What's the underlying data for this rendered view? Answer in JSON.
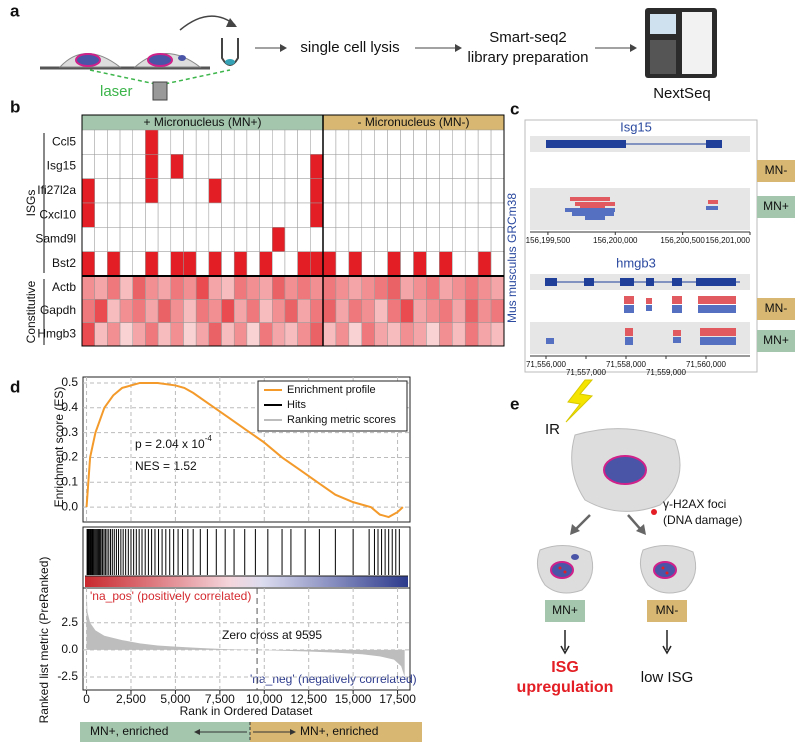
{
  "panel_a": {
    "label": "a",
    "laser": "laser",
    "step1": "single cell lysis",
    "step2": [
      "Smart-seq2",
      "library preparation"
    ],
    "sequencer": "NextSeq"
  },
  "panel_b": {
    "label": "b",
    "isg_label": "ISGs",
    "constitutive_label": "Constitutive",
    "genes": [
      "Ccl5",
      "Isg15",
      "Ifi27l2a",
      "Cxcl10",
      "Samd9l",
      "Bst2",
      "Actb",
      "Gapdh",
      "Hmgb3"
    ],
    "color": "#e31e24",
    "groups": [
      {
        "name": "+ Micronucleus (MN+)",
        "color": "#a3c6ad",
        "values": [
          [
            0,
            0,
            0,
            0,
            0,
            1,
            0,
            0,
            0,
            0,
            0,
            0,
            0,
            0,
            0,
            0,
            0,
            0,
            0
          ],
          [
            0,
            0,
            0,
            0,
            0,
            1,
            0,
            1,
            0,
            0,
            0,
            0,
            0,
            0,
            0,
            0,
            0,
            0,
            1
          ],
          [
            1,
            0,
            0,
            0,
            0,
            1,
            0,
            0,
            0,
            0,
            1,
            0,
            0,
            0,
            0,
            0,
            0,
            0,
            1
          ],
          [
            1,
            0,
            0,
            0,
            0,
            0,
            0,
            0,
            0,
            0,
            0,
            0,
            0,
            0,
            0,
            0,
            0,
            0,
            1
          ],
          [
            0,
            0,
            0,
            0,
            0,
            0,
            0,
            0,
            0,
            0,
            0,
            0,
            0,
            0,
            0,
            1,
            0,
            0,
            0
          ],
          [
            1,
            0,
            1,
            0,
            0,
            1,
            0,
            1,
            1,
            0,
            1,
            0,
            1,
            0,
            1,
            0,
            0,
            1,
            1
          ],
          [
            0.5,
            0.4,
            0.6,
            0.3,
            0.7,
            0.5,
            0.4,
            0.6,
            0.5,
            0.8,
            0.4,
            0.3,
            0.6,
            0.5,
            0.4,
            0.7,
            0.5,
            0.6,
            0.5
          ],
          [
            0.6,
            0.8,
            0.3,
            0.5,
            0.6,
            0.4,
            0.7,
            0.5,
            0.3,
            0.6,
            0.5,
            0.8,
            0.4,
            0.6,
            0.3,
            0.5,
            0.7,
            0.4,
            0.6
          ],
          [
            0.8,
            0.3,
            0.5,
            0.2,
            0.4,
            0.6,
            0.3,
            0.5,
            0.2,
            0.4,
            0.7,
            0.3,
            0.5,
            0.2,
            0.6,
            0.4,
            0.3,
            0.5,
            0.7
          ]
        ]
      },
      {
        "name": "- Micronucleus (MN-)",
        "color": "#d7b772",
        "values": [
          [
            0,
            0,
            0,
            0,
            0,
            0,
            0,
            0,
            0,
            0,
            0,
            0,
            0,
            0
          ],
          [
            0,
            0,
            0,
            0,
            0,
            0,
            0,
            0,
            0,
            0,
            0,
            0,
            0,
            0
          ],
          [
            0,
            0,
            0,
            0,
            0,
            0,
            0,
            0,
            0,
            0,
            0,
            0,
            0,
            0
          ],
          [
            0,
            0,
            0,
            0,
            0,
            0,
            0,
            0,
            0,
            0,
            0,
            0,
            0,
            0
          ],
          [
            0,
            0,
            0,
            0,
            0,
            0,
            0,
            0,
            0,
            0,
            0,
            0,
            0,
            0
          ],
          [
            1,
            0,
            1,
            0,
            0,
            1,
            0,
            1,
            0,
            1,
            0,
            0,
            1,
            0
          ],
          [
            0.6,
            0.5,
            0.4,
            0.5,
            0.6,
            0.7,
            0.4,
            0.5,
            0.6,
            0.4,
            0.5,
            0.6,
            0.5,
            0.4
          ],
          [
            0.7,
            0.4,
            0.6,
            0.5,
            0.3,
            0.6,
            0.8,
            0.4,
            0.5,
            0.6,
            0.4,
            0.7,
            0.5,
            0.6
          ],
          [
            0.3,
            0.5,
            0.2,
            0.6,
            0.4,
            0.3,
            0.5,
            0.4,
            0.2,
            0.5,
            0.3,
            0.6,
            0.4,
            0.3
          ]
        ]
      }
    ]
  },
  "panel_c": {
    "label": "c",
    "genome": "Mus musculus GRCm38",
    "conditions": [
      {
        "name": "MN-",
        "color": "#d7b772"
      },
      {
        "name": "MN+",
        "color": "#a3c6ad"
      }
    ],
    "tracks": [
      {
        "gene": "Isg15",
        "xlim": [
          156199367,
          156201000
        ],
        "ticks": [
          {
            "value": 156199500,
            "label": "156,199,500"
          },
          {
            "value": 156200000,
            "label": "156,200,000"
          },
          {
            "value": 156200500,
            "label": "156,200,500"
          },
          {
            "value": 156201000,
            "label": "156,201,000"
          }
        ]
      },
      {
        "gene": "hmgb3",
        "xlim": [
          71555600,
          71561100
        ],
        "ticks": [
          {
            "value": 71556000,
            "label": "71,556,000"
          },
          {
            "value": 71557000,
            "label": "71,557,000"
          },
          {
            "value": 71558000,
            "label": "71,558,000"
          },
          {
            "value": 71559000,
            "label": "71,559,000"
          },
          {
            "value": 71560000,
            "label": "71,560,000"
          }
        ]
      }
    ]
  },
  "chart_data": {
    "type": "gsea",
    "label": "d",
    "y_label": "Enrichment score (ES)",
    "y2_label": "Ranked list metric (PreRanked)",
    "x_label": "Rank in Ordered Dataset",
    "xlim": [
      -200,
      18200
    ],
    "xticks": [
      0,
      {
        "value": 2500,
        "label": "2,500"
      },
      {
        "value": 5000,
        "label": "5,000"
      },
      {
        "value": 7500,
        "label": "7,500"
      },
      {
        "value": 10000,
        "label": "10,000"
      },
      {
        "value": 12500,
        "label": "12,500"
      },
      {
        "value": 15000,
        "label": "15,000"
      },
      {
        "value": 17500,
        "label": "17,500"
      }
    ],
    "ylim": [
      -0.06,
      0.524
    ],
    "yticks": [
      {
        "value": 0,
        "label": "0.0"
      },
      0.1,
      0.2,
      0.3,
      0.4,
      0.5
    ],
    "y2lim": [
      -3.7,
      5.7
    ],
    "y2ticks": [
      -2.5,
      {
        "value": 0,
        "label": "0.0"
      },
      2.5
    ],
    "grid": true,
    "series": [
      {
        "name": "Enrichment profile",
        "color": "#f39a2b",
        "x": [
          0,
          200,
          500,
          1000,
          1500,
          2000,
          3000,
          4000,
          5000,
          5500,
          6000,
          7000,
          8000,
          9000,
          10000,
          11000,
          12000,
          13000,
          14000,
          15000,
          16000,
          16500,
          17000,
          17500,
          17800
        ],
        "values": [
          0,
          0.2,
          0.3,
          0.4,
          0.45,
          0.48,
          0.5,
          0.5,
          0.49,
          0.48,
          0.46,
          0.41,
          0.36,
          0.31,
          0.26,
          0.2,
          0.15,
          0.1,
          0.05,
          0.02,
          0,
          -0.03,
          -0.04,
          -0.02,
          0
        ]
      },
      {
        "name": "Hits",
        "color": "#000000",
        "x": [
          30,
          80,
          120,
          170,
          220,
          260,
          310,
          350,
          400,
          460,
          520,
          580,
          640,
          700,
          760,
          820,
          900,
          980,
          1060,
          1150,
          1250,
          1350,
          1450,
          1560,
          1680,
          1800,
          1930,
          2060,
          2200,
          2350,
          2500,
          2650,
          2800,
          2960,
          3120,
          3300,
          3480,
          3660,
          3850,
          4050,
          4250,
          4460,
          4680,
          4900,
          5150,
          5400,
          5700,
          6000,
          6400,
          6800,
          7300,
          7800,
          8300,
          8900,
          9500,
          10200,
          11000,
          11500,
          12300,
          13100,
          14000,
          15000,
          15900,
          16200,
          16400,
          16600,
          16800,
          17000,
          17200,
          17400,
          17600
        ]
      },
      {
        "name": "Ranking metric scores",
        "color": "#bdbdbd",
        "axis": "y2",
        "x": [
          0,
          50,
          200,
          500,
          1000,
          2000,
          3000,
          4000,
          5000,
          6000,
          7000,
          8000,
          9595,
          11000,
          12500,
          14000,
          15500,
          16500,
          17300,
          17700,
          17900
        ],
        "values": [
          5.5,
          3.5,
          2.5,
          1.8,
          1.3,
          0.9,
          0.6,
          0.4,
          0.3,
          0.2,
          0.12,
          0.06,
          0,
          -0.08,
          -0.15,
          -0.25,
          -0.4,
          -0.6,
          -0.9,
          -1.5,
          -2.5
        ]
      }
    ],
    "p_value": [
      "p = 2.04 x 10",
      "-4"
    ],
    "nes": "NES = 1.52",
    "zero_cross": 9595,
    "zero_cross_label": "Zero cross at 9595",
    "pos_label": "'na_pos' (positively correlated)",
    "neg_label": "'na_neg' (negatively correlated)",
    "enriched": [
      "MN+, enriched",
      "MN+, enriched"
    ]
  },
  "panel_e": {
    "label": "e",
    "ir": "IR",
    "foci": [
      "γ-H2AX foci",
      "(DNA damage)"
    ],
    "left": "MN+",
    "right": "MN-",
    "left_outcome": [
      "ISG",
      "upregulation"
    ],
    "right_outcome": "low ISG"
  }
}
